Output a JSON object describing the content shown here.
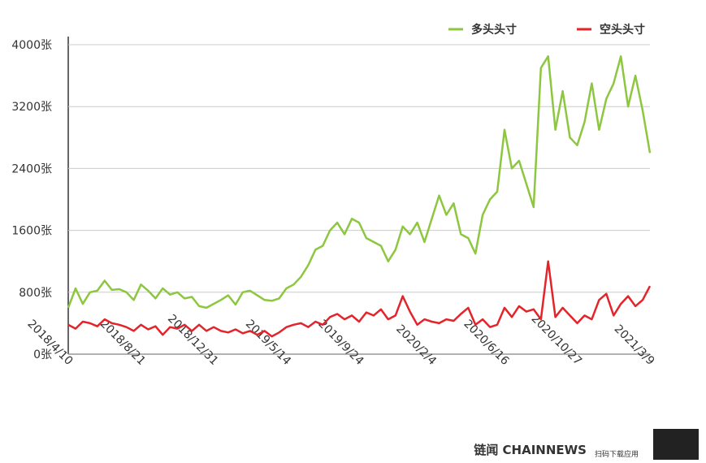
{
  "chart_data": {
    "type": "line",
    "categories": [
      "2018/4/10",
      null,
      null,
      null,
      null,
      null,
      null,
      null,
      null,
      null,
      "2018/8/21",
      null,
      null,
      null,
      null,
      null,
      null,
      null,
      null,
      null,
      "2018/12/31",
      null,
      null,
      null,
      null,
      null,
      null,
      null,
      null,
      null,
      "2019/5/14",
      null,
      null,
      null,
      null,
      null,
      null,
      null,
      null,
      null,
      "2019/9/24",
      null,
      null,
      null,
      null,
      null,
      null,
      null,
      null,
      null,
      "2020/2/4",
      null,
      null,
      null,
      null,
      null,
      null,
      null,
      null,
      null,
      "2020/6/16",
      null,
      null,
      null,
      null,
      null,
      null,
      null,
      null,
      null,
      "2020/10/27",
      null,
      null,
      null,
      null,
      null,
      null,
      null,
      null,
      null,
      "2021/3/9"
    ],
    "series": [
      {
        "name": "多头头寸",
        "color": "#8dc63f",
        "values": [
          600,
          850,
          650,
          800,
          820,
          950,
          830,
          840,
          800,
          700,
          900,
          820,
          720,
          850,
          770,
          800,
          720,
          740,
          620,
          600,
          650,
          700,
          760,
          640,
          800,
          820,
          760,
          700,
          690,
          720,
          850,
          900,
          1000,
          1150,
          1350,
          1400,
          1600,
          1700,
          1550,
          1750,
          1700,
          1500,
          1450,
          1400,
          1200,
          1350,
          1650,
          1550,
          1700,
          1450,
          1750,
          2050,
          1800,
          1950,
          1550,
          1500,
          1300,
          1800,
          2000,
          2100,
          2900,
          2400,
          2500,
          2200,
          1900,
          3700,
          3850,
          2900,
          3400,
          2800,
          2700,
          3000,
          3500,
          2900,
          3300,
          3500,
          3850,
          3200,
          3600,
          3150,
          2600
        ]
      },
      {
        "name": "空头头寸",
        "color": "#e3242b",
        "values": [
          380,
          330,
          420,
          400,
          360,
          450,
          400,
          380,
          350,
          300,
          380,
          320,
          360,
          250,
          350,
          330,
          380,
          300,
          380,
          300,
          350,
          300,
          280,
          320,
          270,
          300,
          250,
          300,
          230,
          280,
          350,
          380,
          400,
          350,
          420,
          380,
          480,
          520,
          450,
          500,
          420,
          540,
          500,
          580,
          450,
          500,
          750,
          550,
          380,
          450,
          420,
          400,
          450,
          430,
          520,
          600,
          380,
          450,
          350,
          380,
          600,
          480,
          620,
          550,
          580,
          450,
          1200,
          480,
          600,
          500,
          400,
          500,
          450,
          700,
          780,
          500,
          650,
          750,
          620,
          700,
          880
        ]
      }
    ],
    "ylim": [
      0,
      4000
    ],
    "yticks": [
      {
        "value": 0,
        "label": "0张"
      },
      {
        "value": 800,
        "label": "800张"
      },
      {
        "value": 1600,
        "label": "1600张"
      },
      {
        "value": 2400,
        "label": "2400张"
      },
      {
        "value": 3200,
        "label": "3200张"
      },
      {
        "value": 4000,
        "label": "4000张"
      }
    ],
    "grid": true,
    "legend": "top-right",
    "footer": {
      "brand": "链闻 CHAINNEWS",
      "tagline": "扫码下载应用"
    }
  }
}
